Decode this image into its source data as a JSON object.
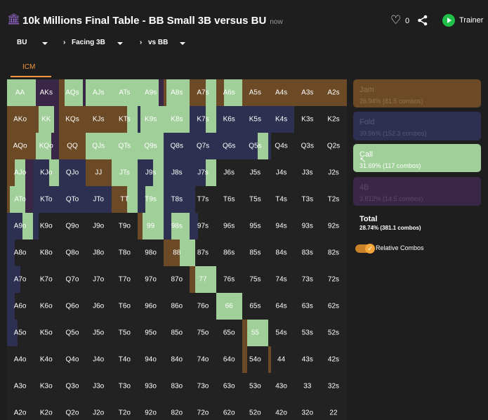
{
  "header": {
    "title": "10k Millions Final Table - BB Small 3B versus BU",
    "timestamp": "now",
    "like_count": "0",
    "trainer_label": "Trainer",
    "icons": [
      "bank-icon",
      "heart-icon",
      "share-icon",
      "play-icon"
    ]
  },
  "nav": {
    "position": "BU",
    "situation": "Facing 3B",
    "opponent": "vs BB"
  },
  "tab": {
    "label": "ICM"
  },
  "colors": {
    "jam": "#6b4a25",
    "fold": "#2d3050",
    "call": "#a0cf99",
    "fourb": "#3a2747",
    "empty": "#222222",
    "accent": "#f2963c"
  },
  "grid": {
    "rows": [
      [
        "AA",
        "AKs",
        "AQs",
        "AJs",
        "ATs",
        "A9s",
        "A8s",
        "A7s",
        "A6s",
        "A5s",
        "A4s",
        "A3s",
        "A2s"
      ],
      [
        "AKo",
        "KK",
        "KQs",
        "KJs",
        "KTs",
        "K9s",
        "K8s",
        "K7s",
        "K6s",
        "K5s",
        "K4s",
        "K3s",
        "K2s"
      ],
      [
        "AQo",
        "KQo",
        "QQ",
        "QJs",
        "QTs",
        "Q9s",
        "Q8s",
        "Q7s",
        "Q6s",
        "Q5s",
        "Q4s",
        "Q3s",
        "Q2s"
      ],
      [
        "AJo",
        "KJo",
        "QJo",
        "JJ",
        "JTs",
        "J9s",
        "J8s",
        "J7s",
        "J6s",
        "J5s",
        "J4s",
        "J3s",
        "J2s"
      ],
      [
        "ATo",
        "KTo",
        "QTo",
        "JTo",
        "TT",
        "T9s",
        "T8s",
        "T7s",
        "T6s",
        "T5s",
        "T4s",
        "T3s",
        "T2s"
      ],
      [
        "A9o",
        "K9o",
        "Q9o",
        "J9o",
        "T9o",
        "99",
        "98s",
        "97s",
        "96s",
        "95s",
        "94s",
        "93s",
        "92s"
      ],
      [
        "A8o",
        "K8o",
        "Q8o",
        "J8o",
        "T8o",
        "98o",
        "88",
        "87s",
        "86s",
        "85s",
        "84s",
        "83s",
        "82s"
      ],
      [
        "A7o",
        "K7o",
        "Q7o",
        "J7o",
        "T7o",
        "97o",
        "87o",
        "77",
        "76s",
        "75s",
        "74s",
        "73s",
        "72s"
      ],
      [
        "A6o",
        "K6o",
        "Q6o",
        "J6o",
        "T6o",
        "96o",
        "86o",
        "76o",
        "66",
        "65s",
        "64s",
        "63s",
        "62s"
      ],
      [
        "A5o",
        "K5o",
        "Q5o",
        "J5o",
        "T5o",
        "95o",
        "85o",
        "75o",
        "65o",
        "55",
        "54s",
        "53s",
        "52s"
      ],
      [
        "A4o",
        "K4o",
        "Q4o",
        "J4o",
        "T4o",
        "94o",
        "84o",
        "74o",
        "64o",
        "54o",
        "44",
        "43s",
        "42s"
      ],
      [
        "A3o",
        "K3o",
        "Q3o",
        "J3o",
        "T3o",
        "93o",
        "83o",
        "73o",
        "63o",
        "53o",
        "43o",
        "33",
        "32s"
      ],
      [
        "A2o",
        "K2o",
        "Q2o",
        "J2o",
        "T2o",
        "92o",
        "82o",
        "72o",
        "62o",
        "52o",
        "42o",
        "32o",
        "22"
      ]
    ],
    "freq": {
      "AA": [
        0,
        0,
        1,
        0
      ],
      "AKs": [
        0,
        0,
        0.1,
        0.9
      ],
      "AQs": [
        0.2,
        0,
        0.7,
        0.1
      ],
      "AJs": [
        0,
        0,
        1,
        0
      ],
      "ATs": [
        0,
        0,
        1,
        0
      ],
      "A9s": [
        0,
        0,
        0.8,
        0.2
      ],
      "A8s": [
        0.1,
        0,
        0.9,
        0
      ],
      "A7s": [
        0.6,
        0,
        0.4,
        0
      ],
      "A6s": [
        0.3,
        0,
        0.7,
        0
      ],
      "A5s": [
        1,
        0,
        0,
        0
      ],
      "A4s": [
        1,
        0,
        0,
        0
      ],
      "A3s": [
        1,
        0,
        0,
        0
      ],
      "A2s": [
        1,
        0,
        0,
        0
      ],
      "AKo": [
        1,
        0,
        0,
        0
      ],
      "KK": [
        0.2,
        0,
        0.6,
        0.2
      ],
      "KQs": [
        1,
        0,
        0,
        0
      ],
      "KJs": [
        1,
        0,
        0,
        0
      ],
      "KTs": [
        0.6,
        0,
        0.4,
        0
      ],
      "K9s": [
        0,
        0.1,
        0.9,
        0
      ],
      "K8s": [
        0,
        0,
        1,
        0
      ],
      "K7s": [
        0,
        0.6,
        0.4,
        0
      ],
      "K6s": [
        0,
        1,
        0,
        0
      ],
      "K5s": [
        0,
        1,
        0,
        0
      ],
      "K4s": [
        0,
        1,
        0,
        0
      ],
      "AQo": [
        1,
        0,
        0,
        0
      ],
      "KQo": [
        0.1,
        0,
        0.6,
        0.3
      ],
      "QQ": [
        1,
        0,
        0,
        0
      ],
      "QJs": [
        0,
        0,
        1,
        0
      ],
      "QTs": [
        0,
        0,
        1,
        0
      ],
      "Q9s": [
        0,
        0,
        1,
        0
      ],
      "Q8s": [
        0,
        1,
        0,
        0
      ],
      "Q7s": [
        0,
        1,
        0,
        0
      ],
      "Q6s": [
        0,
        1,
        0,
        0
      ],
      "Q5s": [
        0,
        0.6,
        0.4,
        0
      ],
      "Q4s": [
        0,
        0.1,
        0,
        0
      ],
      "AJo": [
        0.3,
        0,
        0.4,
        0.3
      ],
      "KJo": [
        0,
        0.6,
        0.4,
        0
      ],
      "QJo": [
        0,
        1,
        0,
        0
      ],
      "JJ": [
        1,
        0,
        0,
        0
      ],
      "JTs": [
        0,
        0,
        1,
        0
      ],
      "J9s": [
        0,
        0.6,
        0.4,
        0
      ],
      "J8s": [
        0,
        1,
        0,
        0
      ],
      "J7s": [
        0,
        0.6,
        0.4,
        0
      ],
      "ATo": [
        0.1,
        0,
        0.6,
        0.3
      ],
      "KTo": [
        0,
        1,
        0,
        0
      ],
      "QTo": [
        0,
        1,
        0,
        0
      ],
      "JTo": [
        0,
        1,
        0,
        0
      ],
      "TT": [
        0.6,
        0,
        0.4,
        0
      ],
      "T9s": [
        0,
        0.3,
        0.7,
        0
      ],
      "T8s": [
        0,
        1,
        0,
        0
      ],
      "T7s": [
        0,
        0.2,
        0,
        0
      ],
      "A9o": [
        0,
        0.6,
        0.4,
        0
      ],
      "K9o": [
        0,
        0.2,
        0,
        0
      ],
      "99": [
        0.2,
        0,
        0.8,
        0
      ],
      "98s": [
        0,
        0.3,
        0.7,
        0
      ],
      "97s": [
        0,
        0.3,
        0,
        0
      ],
      "A8o": [
        0,
        0.3,
        0,
        0
      ],
      "88": [
        0.6,
        0,
        0.4,
        0
      ],
      "87s": [
        0,
        0,
        0.2,
        0
      ],
      "A7o": [
        0,
        0.5,
        0,
        0
      ],
      "77": [
        0.2,
        0,
        0.8,
        0
      ],
      "A6o": [
        0,
        0.3,
        0,
        0
      ],
      "66": [
        0,
        0,
        1,
        0
      ],
      "A5o": [
        0,
        0.4,
        0,
        0
      ],
      "55": [
        0.2,
        0,
        0.8,
        0
      ],
      "54o": [
        0.2,
        0,
        0,
        0
      ],
      "44": [
        0.1,
        0,
        0,
        0
      ]
    }
  },
  "actions": {
    "jam": {
      "label": "Jam",
      "detail": "26.94% (81.5 combos)"
    },
    "fold": {
      "label": "Fold",
      "detail": "39.96% (152.3 combos)"
    },
    "call": {
      "label": "Call",
      "detail": "31.69% (117 combos)"
    },
    "fourb": {
      "label": "4B",
      "detail": "3.812% (14.5 combos)"
    }
  },
  "total": {
    "label": "Total",
    "value": "28.74% (381.1 combos)"
  },
  "toggle": {
    "label": "Relative Combos",
    "checked": true
  }
}
